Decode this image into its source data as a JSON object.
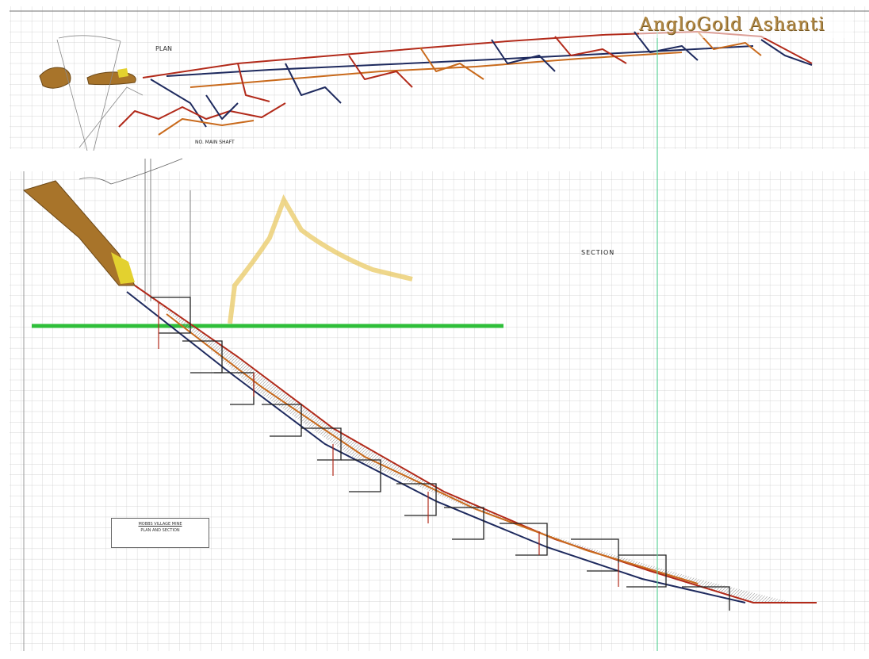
{
  "brand": {
    "text": "AngloGold Ashanti",
    "color": "#b38a45"
  },
  "plan": {
    "label": "PLAN",
    "shaft_label": "NO. MAIN SHAFT"
  },
  "section": {
    "label": "SECTION"
  },
  "legend": {
    "title": "MOBBS VILLAGE MINE",
    "subtitle": "PLAN AND SECTION"
  },
  "colors": {
    "grid": "#c9c9c9",
    "red": "#b22a1a",
    "navy": "#1e2a5e",
    "orange": "#c96a1c",
    "ore": "#a8742a",
    "surface": "#2fbf3a",
    "hill": "#e8c65a",
    "vertical": "#5fd19a"
  }
}
